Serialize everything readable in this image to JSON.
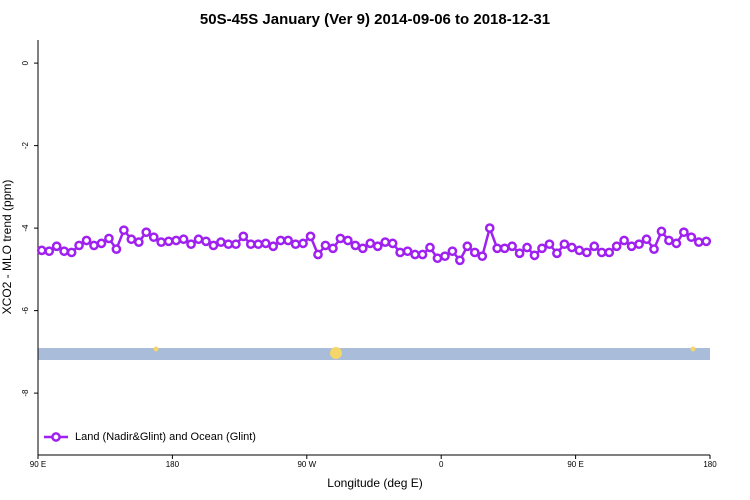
{
  "chart_data": {
    "type": "line",
    "title": "50S-45S January (Ver 9)   2014-09-06 to 2018-12-31",
    "xlabel": "Longitude (deg E)",
    "ylabel": "XCO2 - MLO trend (ppm)",
    "xlim": [
      90,
      540
    ],
    "ylim": [
      -9.5,
      0.56
    ],
    "xticks": [
      {
        "value": 90,
        "label": "90 E"
      },
      {
        "value": 180,
        "label": "180"
      },
      {
        "value": 270,
        "label": "90 W"
      },
      {
        "value": 360,
        "label": "0"
      },
      {
        "value": 450,
        "label": "90 E"
      },
      {
        "value": 540,
        "label": "180"
      }
    ],
    "yticks": [
      0,
      -2,
      -4,
      -6,
      -8
    ],
    "legend": "bottom-left",
    "x": [
      92.5,
      97.5,
      102.5,
      107.5,
      112.5,
      117.5,
      122.5,
      127.5,
      132.5,
      137.5,
      142.5,
      147.5,
      152.5,
      157.5,
      162.5,
      167.5,
      172.5,
      177.5,
      182.5,
      187.5,
      192.5,
      197.5,
      202.5,
      207.5,
      212.5,
      217.5,
      222.5,
      227.5,
      232.5,
      237.5,
      242.5,
      247.5,
      252.5,
      257.5,
      262.5,
      267.5,
      272.5,
      277.5,
      282.5,
      287.5,
      292.5,
      297.5,
      302.5,
      307.5,
      312.5,
      317.5,
      322.5,
      327.5,
      332.5,
      337.5,
      342.5,
      347.5,
      352.5,
      357.5,
      362.5,
      367.5,
      372.5,
      377.5,
      382.5,
      387.5,
      392.5,
      397.5,
      402.5,
      407.5,
      412.5,
      417.5,
      422.5,
      427.5,
      432.5,
      437.5,
      442.5,
      447.5,
      452.5,
      457.5,
      462.5,
      467.5,
      472.5,
      477.5,
      482.5,
      487.5,
      492.5,
      497.5,
      502.5,
      507.5,
      512.5,
      517.5,
      522.5,
      527.5,
      532.5,
      537.5
    ],
    "series": [
      {
        "name": "Land (Nadir&Glint) and Ocean (Glint)",
        "color": "#a020f0",
        "values": [
          -4.54,
          -4.56,
          -4.44,
          -4.56,
          -4.59,
          -4.42,
          -4.3,
          -4.42,
          -4.37,
          -4.25,
          -4.51,
          -4.05,
          -4.27,
          -4.34,
          -4.1,
          -4.22,
          -4.34,
          -4.32,
          -4.3,
          -4.27,
          -4.39,
          -4.27,
          -4.32,
          -4.42,
          -4.34,
          -4.39,
          -4.39,
          -4.2,
          -4.39,
          -4.39,
          -4.37,
          -4.44,
          -4.3,
          -4.3,
          -4.39,
          -4.37,
          -4.2,
          -4.64,
          -4.42,
          -4.49,
          -4.25,
          -4.3,
          -4.42,
          -4.49,
          -4.37,
          -4.44,
          -4.34,
          -4.37,
          -4.59,
          -4.56,
          -4.64,
          -4.64,
          -4.47,
          -4.73,
          -4.68,
          -4.56,
          -4.78,
          -4.44,
          -4.59,
          -4.68,
          -4.0,
          -4.49,
          -4.49,
          -4.44,
          -4.61,
          -4.47,
          -4.66,
          -4.49,
          -4.39,
          -4.61,
          -4.39,
          -4.47,
          -4.54,
          -4.59,
          -4.44,
          -4.59,
          -4.59,
          -4.44,
          -4.3,
          -4.44,
          -4.39,
          -4.27,
          -4.51,
          -4.08,
          -4.3,
          -4.37,
          -4.1,
          -4.22,
          -4.34,
          -4.32
        ]
      }
    ]
  }
}
